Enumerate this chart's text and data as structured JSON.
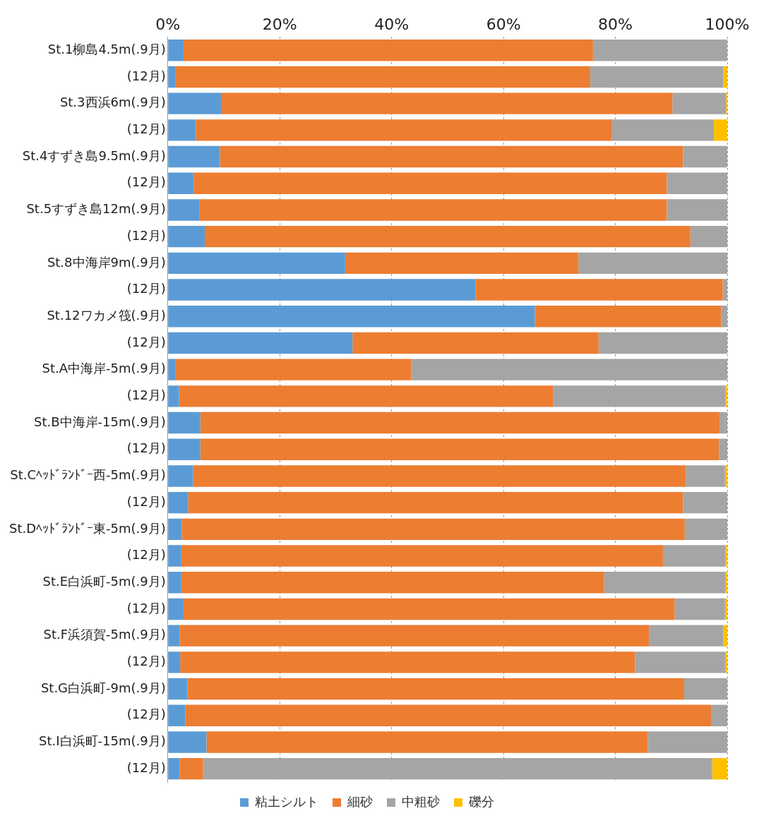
{
  "chart_data": {
    "type": "bar",
    "orientation": "horizontal",
    "stacked": true,
    "grid": "x",
    "legend": "bottom",
    "categories": [
      "St.1柳島4.5m(.9月)",
      "(12月)",
      "St.3西浜6m(.9月)",
      "(12月)",
      "St.4すずき島9.5m(.9月)",
      "(12月)",
      "St.5すずき島12m(.9月)",
      "(12月)",
      "St.8中海岸9m(.9月)",
      "(12月)",
      "St.12ワカメ筏(.9月)",
      "(12月)",
      "St.A中海岸-5m(.9月)",
      "(12月)",
      "St.B中海岸-15m(.9月)",
      "(12月)",
      "St.Cﾍｯﾄﾞﾗﾝﾄﾞｰ西-5m(.9月)",
      "(12月)",
      "St.Dﾍｯﾄﾞﾗﾝﾄﾞｰ東-5m(.9月)",
      "(12月)",
      "St.E白浜町-5m(.9月)",
      "(12月)",
      "St.F浜須賀-5m(.9月)",
      "(12月)",
      "St.G白浜町-9m(.9月)",
      "(12月)",
      "St.I白浜町-15m(.9月)",
      "(12月)"
    ],
    "xlim": [
      0,
      100
    ],
    "xticks": [
      {
        "value": 0,
        "label": "0%"
      },
      {
        "value": 20,
        "label": "20%"
      },
      {
        "value": 40,
        "label": "40%"
      },
      {
        "value": 60,
        "label": "60%"
      },
      {
        "value": 80,
        "label": "80%"
      },
      {
        "value": 100,
        "label": "100%"
      }
    ],
    "series": [
      {
        "name": "粘土シルト",
        "color": "#5b9bd5",
        "values": [
          2.8,
          1.3,
          9.5,
          5.0,
          9.3,
          4.6,
          5.6,
          6.6,
          31.7,
          55.0,
          65.6,
          33.0,
          1.3,
          2.0,
          5.8,
          5.8,
          4.5,
          3.6,
          2.5,
          2.4,
          2.4,
          2.8,
          2.1,
          2.2,
          3.5,
          3.1,
          6.9,
          2.1
        ]
      },
      {
        "name": "細砂",
        "color": "#ed7d31",
        "values": [
          73.2,
          74.2,
          80.7,
          74.4,
          82.8,
          84.6,
          83.6,
          86.8,
          41.7,
          44.2,
          33.3,
          44.0,
          42.2,
          66.9,
          92.9,
          92.7,
          88.1,
          88.5,
          89.9,
          86.1,
          75.6,
          87.8,
          83.9,
          81.3,
          88.8,
          94.0,
          78.9,
          4.2
        ]
      },
      {
        "name": "中粗砂",
        "color": "#a5a5a5",
        "values": [
          24.0,
          23.8,
          9.6,
          18.2,
          7.9,
          10.8,
          10.8,
          6.6,
          26.6,
          0.8,
          1.1,
          23.0,
          56.5,
          30.8,
          1.3,
          1.5,
          7.0,
          7.9,
          7.6,
          11.2,
          21.7,
          9.0,
          13.3,
          16.2,
          7.7,
          2.9,
          14.2,
          91.0
        ]
      },
      {
        "name": "礫分",
        "color": "#ffc000",
        "values": [
          0,
          0.7,
          0.2,
          2.4,
          0,
          0,
          0,
          0,
          0,
          0,
          0,
          0,
          0,
          0.3,
          0,
          0,
          0.4,
          0,
          0,
          0.3,
          0.3,
          0.4,
          0.7,
          0.3,
          0,
          0,
          0,
          2.7
        ]
      }
    ]
  }
}
